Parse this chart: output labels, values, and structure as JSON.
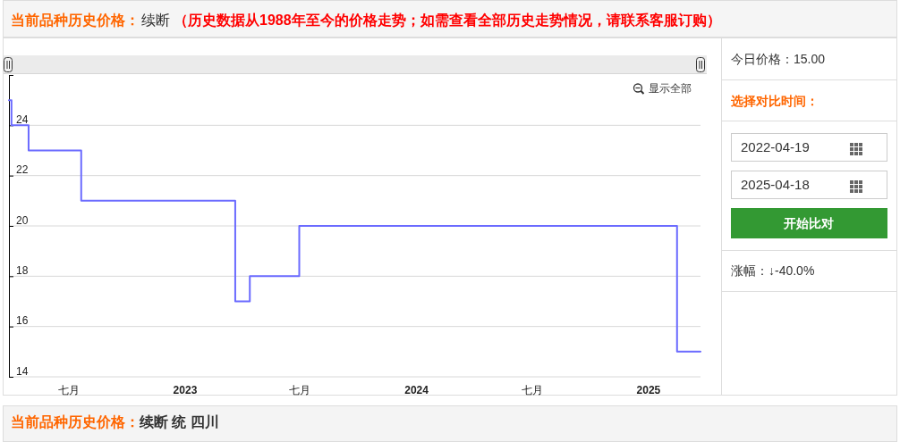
{
  "chart_data": {
    "type": "step",
    "title": "当前品种历史价格：续断",
    "subtitle": "（历史数据从1988年至今的价格走势；如需查看全部历史走势情况，请联系客服订购）",
    "x": [
      "2022-03-29",
      "2022-04-02",
      "2022-04-29",
      "2022-07-21",
      "2023-03-21",
      "2023-04-13",
      "2023-06-30",
      "2025-02-15",
      "2025-03-24"
    ],
    "series": [
      {
        "color": "#6b6bff",
        "values": [
          25,
          24,
          23,
          21,
          17,
          18,
          20,
          15,
          15
        ]
      }
    ],
    "xlim": [
      "2022-03-29",
      "2025-03-24"
    ],
    "xticks": [
      {
        "value": "2022-07-01",
        "label": "七月"
      },
      {
        "value": "2023-01-01",
        "label": "2023"
      },
      {
        "value": "2023-07-01",
        "label": "七月"
      },
      {
        "value": "2024-01-01",
        "label": "2024"
      },
      {
        "value": "2024-07-01",
        "label": "七月"
      },
      {
        "value": "2025-01-01",
        "label": "2025"
      }
    ],
    "ylim": [
      14,
      26
    ],
    "yticks": [
      14,
      16,
      18,
      20,
      22,
      24
    ],
    "grid": "y",
    "annotations": [
      "显示全部",
      "今日价格：15.00",
      "选择对比时间：",
      "2022-04-19",
      "2025-04-18",
      "开始比对",
      "涨幅：↓-40.0%",
      "当前品种历史价格：续断 统 四川"
    ]
  }
}
